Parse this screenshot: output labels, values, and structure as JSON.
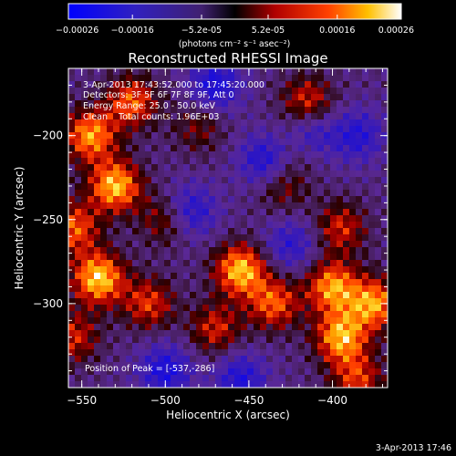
{
  "chart_data": {
    "type": "heatmap",
    "title": "Reconstructed RHESSI Image",
    "xlabel": "Heliocentric X (arcsec)",
    "ylabel": "Heliocentric Y (arcsec)",
    "xlim": [
      -558,
      -367
    ],
    "ylim": [
      -350,
      -160
    ],
    "xticks": [
      -550,
      -500,
      -450,
      -400
    ],
    "yticks": [
      -200,
      -250,
      -300
    ],
    "colorbar": {
      "range": [
        -0.00026,
        0.00026
      ],
      "ticks": [
        "-0.00026",
        "-0.00016",
        "-5.2e-05",
        "5.2e-05",
        "0.00016",
        "0.00026"
      ],
      "unit_label": "(photons cm⁻² s⁻¹ asec⁻²)"
    },
    "annotations": [
      "3-Apr-2013 17:43:52.000 to 17:45:20.000",
      "Detectors: 3F 5F 6F 7F 8F 9F, Att 0",
      "Energy Range: 25.0 - 50.0 keV",
      "Clean    Total counts: 1.96E+03"
    ],
    "peak_label": "Position of Peak = [-537,-286]",
    "peak_position": [
      -537,
      -286
    ],
    "hotspots": [
      {
        "x": -540,
        "y": -285,
        "v": 1.0
      },
      {
        "x": -530,
        "y": -230,
        "v": 0.95
      },
      {
        "x": -545,
        "y": -200,
        "v": 0.85
      },
      {
        "x": -520,
        "y": -180,
        "v": 0.7
      },
      {
        "x": -555,
        "y": -255,
        "v": 0.7
      },
      {
        "x": -510,
        "y": -300,
        "v": 0.6
      },
      {
        "x": -455,
        "y": -280,
        "v": 0.95
      },
      {
        "x": -435,
        "y": -300,
        "v": 0.7
      },
      {
        "x": -400,
        "y": -290,
        "v": 0.85
      },
      {
        "x": -395,
        "y": -320,
        "v": 0.9
      },
      {
        "x": -375,
        "y": -300,
        "v": 0.85
      },
      {
        "x": -385,
        "y": -345,
        "v": 0.6
      },
      {
        "x": -470,
        "y": -315,
        "v": 0.55
      },
      {
        "x": -500,
        "y": -250,
        "v": 0.45
      },
      {
        "x": -415,
        "y": -180,
        "v": 0.6
      },
      {
        "x": -395,
        "y": -255,
        "v": 0.55
      },
      {
        "x": -430,
        "y": -230,
        "v": 0.4
      },
      {
        "x": -555,
        "y": -320,
        "v": 0.55
      },
      {
        "x": -480,
        "y": -195,
        "v": 0.35
      },
      {
        "x": -420,
        "y": -205,
        "v": 0.45
      }
    ],
    "coldspots": [
      {
        "x": -470,
        "y": -170,
        "v": -0.6
      },
      {
        "x": -440,
        "y": -215,
        "v": -0.6
      },
      {
        "x": -415,
        "y": -200,
        "v": -0.7
      },
      {
        "x": -485,
        "y": -245,
        "v": -0.55
      },
      {
        "x": -500,
        "y": -340,
        "v": -0.6
      },
      {
        "x": -455,
        "y": -345,
        "v": -0.55
      },
      {
        "x": -425,
        "y": -265,
        "v": -0.45
      },
      {
        "x": -385,
        "y": -200,
        "v": -0.5
      }
    ]
  },
  "footer": {
    "timestamp": "3-Apr-2013 17:46"
  }
}
